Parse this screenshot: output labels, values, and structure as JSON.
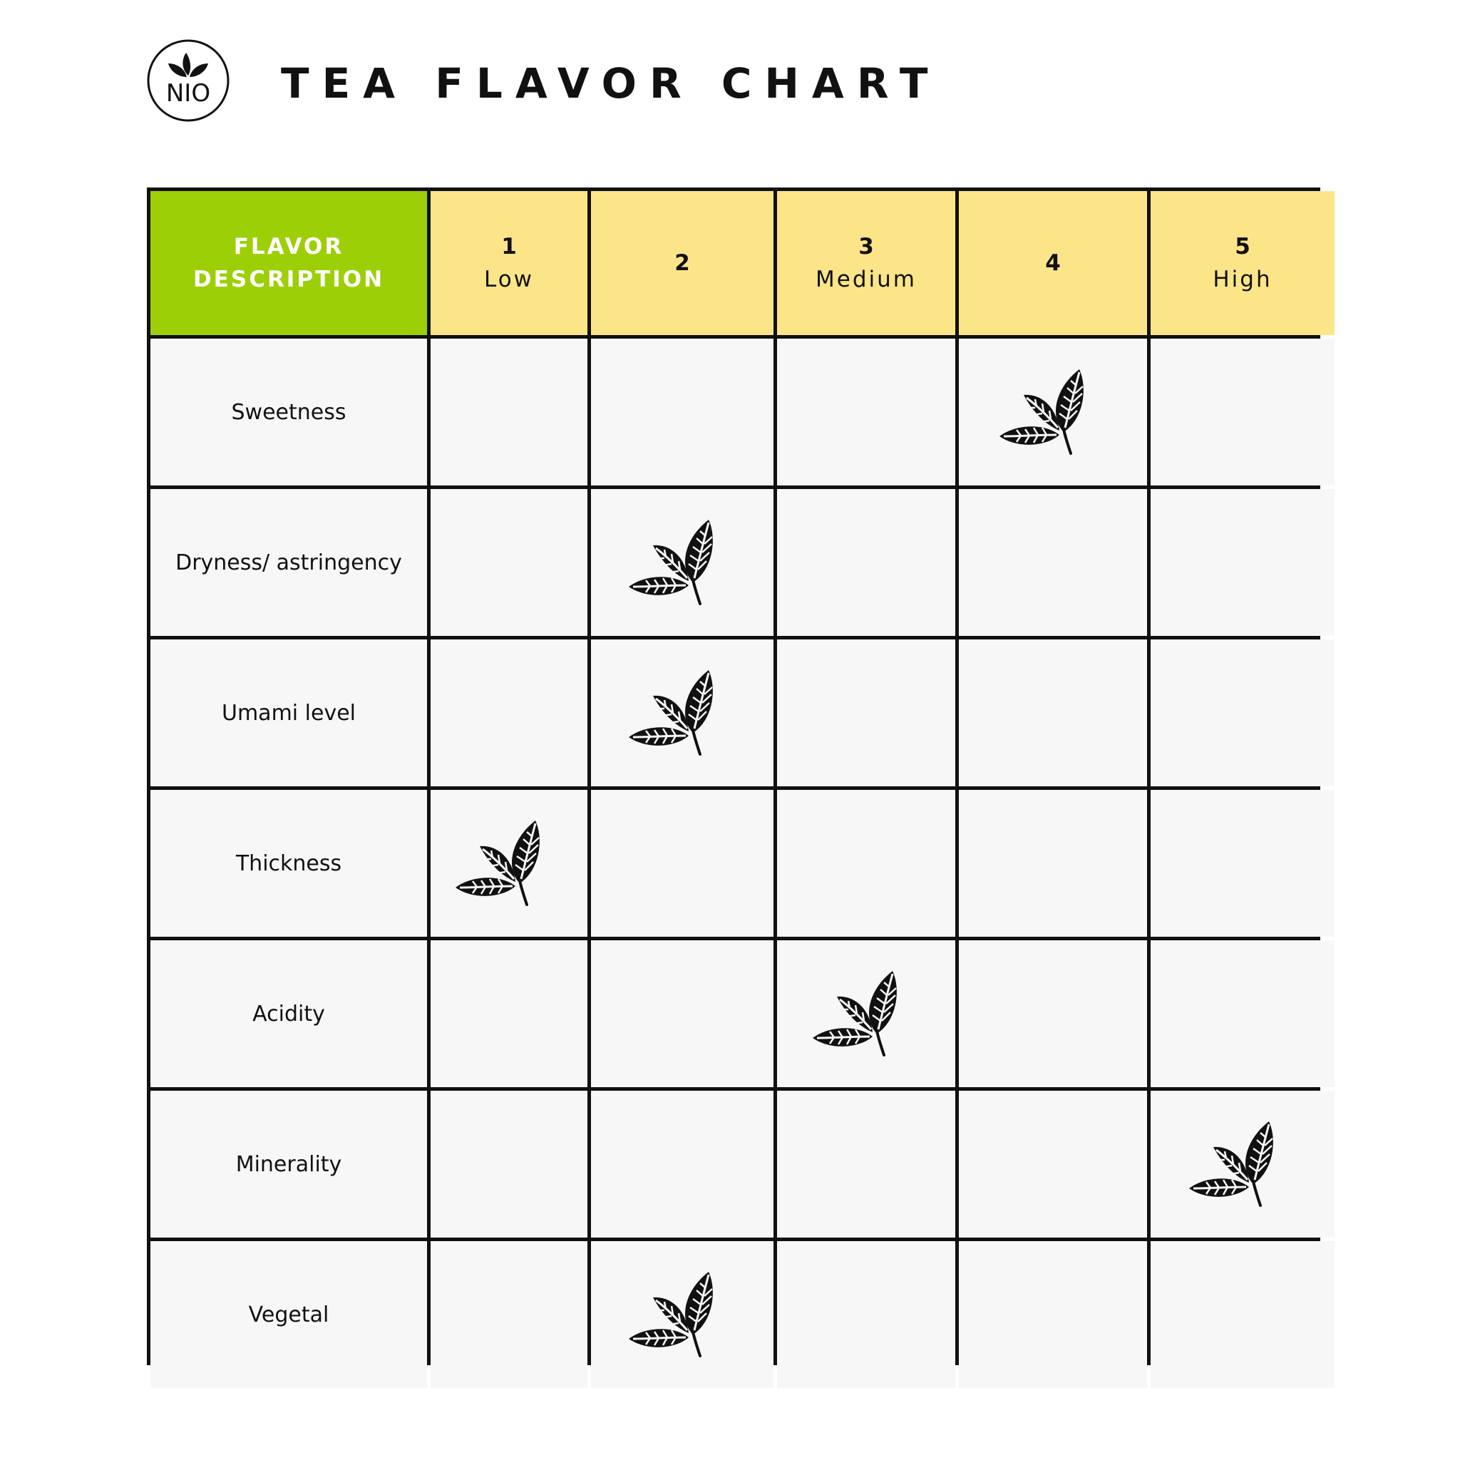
{
  "brand": {
    "logo_text": "NIO",
    "logo_icon": "tea-leaves-icon"
  },
  "title": "TEA FLAVOR CHART",
  "chart_data": {
    "type": "table",
    "title": "TEA FLAVOR CHART",
    "header": {
      "label_line1": "FLAVOR",
      "label_line2": "DESCRIPTION"
    },
    "levels": [
      {
        "number": "1",
        "label": "Low"
      },
      {
        "number": "2",
        "label": ""
      },
      {
        "number": "3",
        "label": "Medium"
      },
      {
        "number": "4",
        "label": ""
      },
      {
        "number": "5",
        "label": "High"
      }
    ],
    "rows": [
      {
        "flavor": "Sweetness",
        "rating": 4
      },
      {
        "flavor": "Dryness/ astringency",
        "rating": 2
      },
      {
        "flavor": "Umami level",
        "rating": 2
      },
      {
        "flavor": "Thickness",
        "rating": 1
      },
      {
        "flavor": "Acidity",
        "rating": 3
      },
      {
        "flavor": "Minerality",
        "rating": 5
      },
      {
        "flavor": "Vegetal",
        "rating": 2
      }
    ],
    "marker_icon": "tea-leaf-icon",
    "colors": {
      "header_label_bg": "#9dcf07",
      "header_level_bg": "#fce589",
      "cell_bg": "#f7f7f7",
      "grid_lines": "#111111"
    }
  }
}
